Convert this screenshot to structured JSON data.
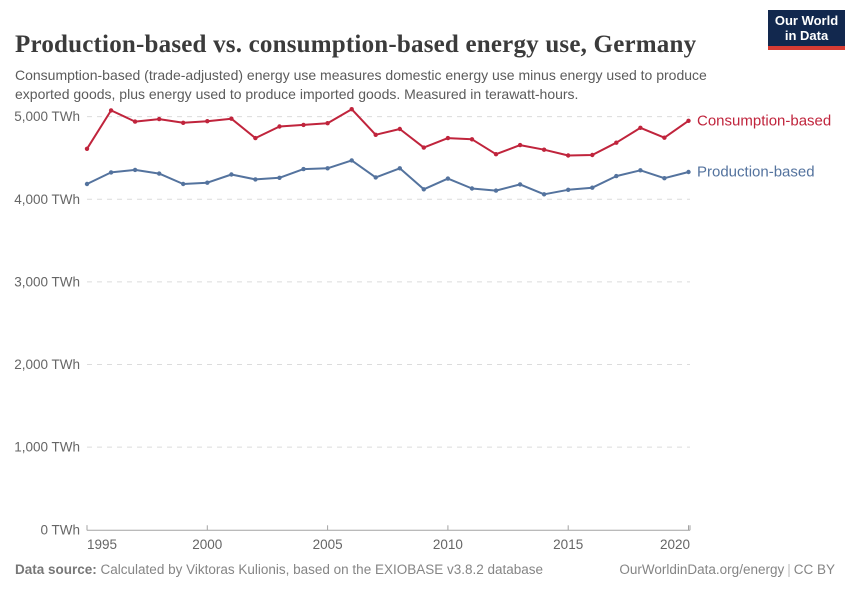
{
  "header": {
    "title": "Production-based vs. consumption-based energy use, Germany",
    "subtitle": "Consumption-based (trade-adjusted) energy use measures domestic energy use minus energy used to produce exported goods, plus energy used to produce imported goods. Measured in terawatt-hours.",
    "logo": {
      "line1": "Our World",
      "line2": "in Data",
      "bg_color": "#12284E",
      "accent_color": "#D73C34"
    }
  },
  "chart_data": {
    "type": "line",
    "title": "Production-based vs. consumption-based energy use, Germany",
    "unit": "TWh",
    "x": [
      1995,
      1996,
      1997,
      1998,
      1999,
      2000,
      2001,
      2002,
      2003,
      2004,
      2005,
      2006,
      2007,
      2008,
      2009,
      2010,
      2011,
      2012,
      2013,
      2014,
      2015,
      2016,
      2017,
      2018,
      2019,
      2020
    ],
    "series": [
      {
        "name": "Consumption-based",
        "color": "#C0243C",
        "values": [
          4610,
          5075,
          4940,
          4970,
          4925,
          4945,
          4975,
          4740,
          4880,
          4900,
          4920,
          5090,
          4780,
          4850,
          4625,
          4740,
          4725,
          4545,
          4655,
          4600,
          4530,
          4535,
          4685,
          4865,
          4745,
          4950
        ]
      },
      {
        "name": "Production-based",
        "color": "#54739E",
        "values": [
          4185,
          4325,
          4355,
          4310,
          4185,
          4200,
          4300,
          4240,
          4260,
          4365,
          4375,
          4470,
          4265,
          4375,
          4120,
          4250,
          4130,
          4105,
          4180,
          4060,
          4115,
          4140,
          4280,
          4350,
          4255,
          4330
        ]
      }
    ],
    "ylim": [
      0,
      5200
    ],
    "yticks": [
      0,
      1000,
      2000,
      3000,
      4000,
      5000
    ],
    "ytick_labels": [
      "0 TWh",
      "1,000 TWh",
      "2,000 TWh",
      "3,000 TWh",
      "4,000 TWh",
      "5,000 TWh"
    ],
    "xticks": [
      1995,
      2000,
      2005,
      2010,
      2015,
      2020
    ],
    "xtick_labels": [
      "1995",
      "2000",
      "2005",
      "2010",
      "2015",
      "2020"
    ],
    "grid": "horizontal-dashed",
    "legend_position": "right-end-labels"
  },
  "footer": {
    "source_label": "Data source:",
    "source_text": " Calculated by Viktoras Kulionis, based on the EXIOBASE v3.8.2 database",
    "link_text": "OurWorldinData.org/energy",
    "separator": "|",
    "license_text": "CC BY"
  }
}
